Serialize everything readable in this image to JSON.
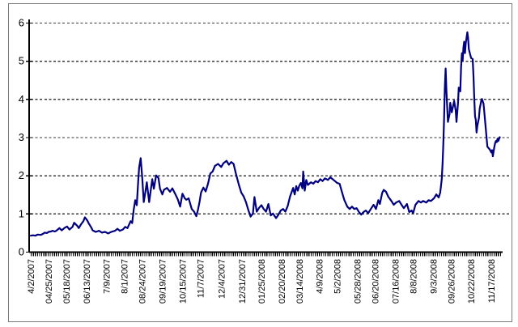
{
  "chart": {
    "background": "#ffffff",
    "frame_border_color": "#7b7b7b",
    "line_color": "#000080",
    "gridline_color": "#3a3a3a",
    "axis_color": "#000000",
    "text_color": "#000000"
  },
  "chart_data": {
    "type": "line",
    "title": "",
    "xlabel": "",
    "ylabel": "",
    "legend": "none",
    "grid": "horizontal-dashed",
    "ylim": [
      0,
      6
    ],
    "y_ticks": [
      "0",
      "1",
      "2",
      "3",
      "4",
      "5",
      "6"
    ],
    "x_start_date": "4/2/2007",
    "x_unit": "calendar days since 4/2/2007",
    "x_tick_labels": [
      {
        "label": "4/2/2007",
        "day": 0
      },
      {
        "label": "04/25/2007",
        "day": 23
      },
      {
        "label": "05/18/2007",
        "day": 46
      },
      {
        "label": "06/13/2007",
        "day": 72
      },
      {
        "label": "7/9/2007",
        "day": 98
      },
      {
        "label": "8/1/2007",
        "day": 121
      },
      {
        "label": "08/24/2007",
        "day": 144
      },
      {
        "label": "09/19/2007",
        "day": 170
      },
      {
        "label": "10/15/2007",
        "day": 196
      },
      {
        "label": "11/7/2007",
        "day": 219
      },
      {
        "label": "12/4/2007",
        "day": 246
      },
      {
        "label": "12/31/2007",
        "day": 273
      },
      {
        "label": "01/25/2008",
        "day": 298
      },
      {
        "label": "02/20/2008",
        "day": 324
      },
      {
        "label": "03/14/2008",
        "day": 347
      },
      {
        "label": "4/9/2008",
        "day": 373
      },
      {
        "label": "5/2/2008",
        "day": 396
      },
      {
        "label": "05/28/2008",
        "day": 422
      },
      {
        "label": "06/20/2008",
        "day": 445
      },
      {
        "label": "07/16/2008",
        "day": 471
      },
      {
        "label": "8/8/2008",
        "day": 494
      },
      {
        "label": "9/3/2008",
        "day": 520
      },
      {
        "label": "09/26/2008",
        "day": 543
      },
      {
        "label": "10/22/2008",
        "day": 569
      },
      {
        "label": "11/17/2008",
        "day": 595
      }
    ],
    "points": [
      [
        0,
        0.42
      ],
      [
        3,
        0.43
      ],
      [
        6,
        0.42
      ],
      [
        9,
        0.45
      ],
      [
        13,
        0.44
      ],
      [
        16,
        0.47
      ],
      [
        18,
        0.5
      ],
      [
        21,
        0.49
      ],
      [
        23,
        0.52
      ],
      [
        26,
        0.53
      ],
      [
        28,
        0.55
      ],
      [
        31,
        0.53
      ],
      [
        33,
        0.55
      ],
      [
        37,
        0.62
      ],
      [
        40,
        0.56
      ],
      [
        44,
        0.63
      ],
      [
        47,
        0.66
      ],
      [
        50,
        0.58
      ],
      [
        54,
        0.65
      ],
      [
        56,
        0.76
      ],
      [
        60,
        0.68
      ],
      [
        62,
        0.62
      ],
      [
        65,
        0.72
      ],
      [
        68,
        0.8
      ],
      [
        70,
        0.9
      ],
      [
        73,
        0.82
      ],
      [
        75,
        0.74
      ],
      [
        78,
        0.64
      ],
      [
        80,
        0.56
      ],
      [
        84,
        0.52
      ],
      [
        88,
        0.55
      ],
      [
        92,
        0.5
      ],
      [
        96,
        0.52
      ],
      [
        100,
        0.48
      ],
      [
        104,
        0.52
      ],
      [
        109,
        0.55
      ],
      [
        112,
        0.6
      ],
      [
        115,
        0.55
      ],
      [
        119,
        0.58
      ],
      [
        122,
        0.65
      ],
      [
        125,
        0.62
      ],
      [
        129,
        0.8
      ],
      [
        131,
        0.75
      ],
      [
        133,
        1.1
      ],
      [
        135,
        1.35
      ],
      [
        137,
        1.22
      ],
      [
        139,
        1.9
      ],
      [
        140,
        2.2
      ],
      [
        142,
        2.45
      ],
      [
        144,
        1.95
      ],
      [
        146,
        1.3
      ],
      [
        148,
        1.55
      ],
      [
        150,
        1.82
      ],
      [
        153,
        1.3
      ],
      [
        155,
        1.6
      ],
      [
        157,
        1.9
      ],
      [
        159,
        1.65
      ],
      [
        162,
        2.0
      ],
      [
        165,
        1.93
      ],
      [
        167,
        1.65
      ],
      [
        170,
        1.5
      ],
      [
        172,
        1.62
      ],
      [
        176,
        1.67
      ],
      [
        180,
        1.57
      ],
      [
        183,
        1.66
      ],
      [
        187,
        1.5
      ],
      [
        190,
        1.37
      ],
      [
        193,
        1.18
      ],
      [
        196,
        1.52
      ],
      [
        199,
        1.4
      ],
      [
        201,
        1.36
      ],
      [
        204,
        1.4
      ],
      [
        208,
        1.12
      ],
      [
        211,
        1.05
      ],
      [
        214,
        0.93
      ],
      [
        216,
        1.1
      ],
      [
        218,
        1.3
      ],
      [
        220,
        1.55
      ],
      [
        223,
        1.68
      ],
      [
        226,
        1.58
      ],
      [
        229,
        1.78
      ],
      [
        232,
        2.05
      ],
      [
        235,
        2.1
      ],
      [
        238,
        2.25
      ],
      [
        242,
        2.3
      ],
      [
        246,
        2.22
      ],
      [
        249,
        2.32
      ],
      [
        253,
        2.38
      ],
      [
        256,
        2.28
      ],
      [
        259,
        2.35
      ],
      [
        262,
        2.3
      ],
      [
        265,
        2.05
      ],
      [
        269,
        1.75
      ],
      [
        272,
        1.55
      ],
      [
        275,
        1.45
      ],
      [
        278,
        1.3
      ],
      [
        281,
        1.1
      ],
      [
        284,
        0.92
      ],
      [
        287,
        1.0
      ],
      [
        289,
        1.43
      ],
      [
        292,
        1.05
      ],
      [
        295,
        1.15
      ],
      [
        298,
        1.22
      ],
      [
        301,
        1.12
      ],
      [
        304,
        1.05
      ],
      [
        307,
        1.25
      ],
      [
        310,
        0.95
      ],
      [
        313,
        1.0
      ],
      [
        317,
        0.88
      ],
      [
        320,
        0.97
      ],
      [
        323,
        1.08
      ],
      [
        326,
        1.12
      ],
      [
        329,
        1.05
      ],
      [
        332,
        1.2
      ],
      [
        335,
        1.45
      ],
      [
        339,
        1.67
      ],
      [
        341,
        1.5
      ],
      [
        343,
        1.72
      ],
      [
        345,
        1.6
      ],
      [
        347,
        1.73
      ],
      [
        349,
        1.8
      ],
      [
        351,
        1.66
      ],
      [
        352,
        2.1
      ],
      [
        354,
        1.6
      ],
      [
        356,
        1.88
      ],
      [
        358,
        1.75
      ],
      [
        362,
        1.82
      ],
      [
        365,
        1.78
      ],
      [
        368,
        1.85
      ],
      [
        371,
        1.82
      ],
      [
        374,
        1.9
      ],
      [
        377,
        1.85
      ],
      [
        380,
        1.92
      ],
      [
        384,
        1.88
      ],
      [
        387,
        1.95
      ],
      [
        390,
        1.9
      ],
      [
        393,
        1.85
      ],
      [
        396,
        1.8
      ],
      [
        399,
        1.78
      ],
      [
        402,
        1.57
      ],
      [
        405,
        1.36
      ],
      [
        409,
        1.18
      ],
      [
        412,
        1.12
      ],
      [
        415,
        1.18
      ],
      [
        418,
        1.12
      ],
      [
        421,
        1.14
      ],
      [
        424,
        1.04
      ],
      [
        427,
        0.97
      ],
      [
        430,
        1.04
      ],
      [
        433,
        1.08
      ],
      [
        436,
        1.01
      ],
      [
        440,
        1.14
      ],
      [
        443,
        1.23
      ],
      [
        446,
        1.12
      ],
      [
        449,
        1.35
      ],
      [
        451,
        1.25
      ],
      [
        454,
        1.54
      ],
      [
        456,
        1.62
      ],
      [
        459,
        1.57
      ],
      [
        462,
        1.44
      ],
      [
        466,
        1.33
      ],
      [
        469,
        1.23
      ],
      [
        472,
        1.29
      ],
      [
        476,
        1.33
      ],
      [
        479,
        1.23
      ],
      [
        482,
        1.14
      ],
      [
        486,
        1.25
      ],
      [
        489,
        1.04
      ],
      [
        492,
        1.08
      ],
      [
        494,
        1.01
      ],
      [
        497,
        1.23
      ],
      [
        501,
        1.33
      ],
      [
        504,
        1.29
      ],
      [
        507,
        1.33
      ],
      [
        511,
        1.29
      ],
      [
        514,
        1.35
      ],
      [
        517,
        1.33
      ],
      [
        521,
        1.4
      ],
      [
        524,
        1.5
      ],
      [
        527,
        1.42
      ],
      [
        529,
        1.55
      ],
      [
        531,
        1.9
      ],
      [
        532,
        2.3
      ],
      [
        533,
        2.8
      ],
      [
        534,
        3.5
      ],
      [
        535,
        4.3
      ],
      [
        536,
        4.8
      ],
      [
        537,
        4.25
      ],
      [
        538,
        3.8
      ],
      [
        539,
        3.4
      ],
      [
        541,
        3.6
      ],
      [
        542,
        3.9
      ],
      [
        544,
        3.65
      ],
      [
        547,
        3.95
      ],
      [
        549,
        3.7
      ],
      [
        550,
        3.4
      ],
      [
        552,
        3.9
      ],
      [
        553,
        4.3
      ],
      [
        555,
        4.2
      ],
      [
        556,
        4.85
      ],
      [
        557,
        5.2
      ],
      [
        558,
        5.0
      ],
      [
        559,
        5.35
      ],
      [
        560,
        5.5
      ],
      [
        561,
        5.2
      ],
      [
        562,
        5.45
      ],
      [
        564,
        5.75
      ],
      [
        565,
        5.6
      ],
      [
        566,
        5.3
      ],
      [
        569,
        5.07
      ],
      [
        571,
        5.05
      ],
      [
        572,
        4.6
      ],
      [
        573,
        4.0
      ],
      [
        574,
        3.55
      ],
      [
        575,
        3.45
      ],
      [
        576,
        3.12
      ],
      [
        577,
        3.3
      ],
      [
        579,
        3.5
      ],
      [
        580,
        3.75
      ],
      [
        582,
        3.95
      ],
      [
        583,
        4.0
      ],
      [
        585,
        3.88
      ],
      [
        586,
        3.65
      ],
      [
        588,
        3.2
      ],
      [
        589,
        2.95
      ],
      [
        590,
        2.75
      ],
      [
        593,
        2.68
      ],
      [
        595,
        2.6
      ],
      [
        596,
        2.66
      ],
      [
        597,
        2.5
      ],
      [
        599,
        2.75
      ],
      [
        600,
        2.85
      ],
      [
        601,
        2.9
      ],
      [
        602,
        2.87
      ],
      [
        603,
        2.96
      ],
      [
        604,
        2.9
      ],
      [
        606,
        3.0
      ]
    ]
  }
}
